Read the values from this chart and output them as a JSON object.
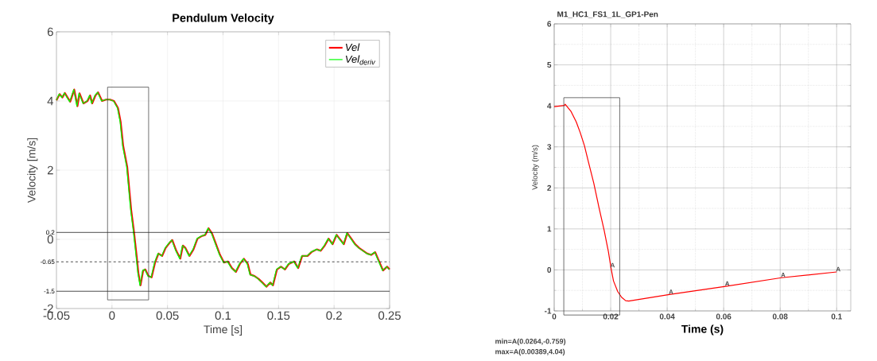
{
  "chart_data": [
    {
      "type": "line",
      "title": "Pendulum Velocity",
      "xlabel": "Time [s]",
      "ylabel": "Velocity [m/s]",
      "xlim": [
        -0.05,
        0.25
      ],
      "ylim": [
        -2,
        6
      ],
      "xticks": [
        -0.05,
        0,
        0.05,
        0.1,
        0.15,
        0.2,
        0.25
      ],
      "yticks": [
        -2,
        0,
        2,
        4,
        6
      ],
      "grid": true,
      "legend": "top right",
      "x": [
        -0.05,
        -0.0471,
        -0.0447,
        -0.0424,
        -0.04,
        -0.0376,
        -0.034,
        -0.0311,
        -0.0292,
        -0.0256,
        -0.022,
        -0.0197,
        -0.0178,
        -0.0149,
        -0.0125,
        -0.0089,
        -0.0053,
        -0.0018,
        0.0018,
        0.0054,
        0.0078,
        0.0101,
        0.0137,
        0.0173,
        0.0197,
        0.0221,
        0.0238,
        0.0257,
        0.0281,
        0.03,
        0.0328,
        0.0357,
        0.0388,
        0.0419,
        0.0452,
        0.0483,
        0.0519,
        0.0543,
        0.0579,
        0.0615,
        0.0639,
        0.0662,
        0.0698,
        0.0734,
        0.077,
        0.0806,
        0.0841,
        0.087,
        0.0901,
        0.0937,
        0.0973,
        0.1009,
        0.1044,
        0.108,
        0.1116,
        0.1152,
        0.1188,
        0.1223,
        0.1247,
        0.1283,
        0.1319,
        0.1355,
        0.1391,
        0.1426,
        0.145,
        0.1486,
        0.1522,
        0.1558,
        0.1593,
        0.1641,
        0.1677,
        0.1713,
        0.1761,
        0.1796,
        0.1844,
        0.188,
        0.1916,
        0.1951,
        0.1987,
        0.2023,
        0.2059,
        0.2088,
        0.2119,
        0.2155,
        0.219,
        0.2226,
        0.2262,
        0.2298,
        0.2334,
        0.237,
        0.2406,
        0.2441,
        0.2477,
        0.25
      ],
      "series": [
        {
          "name": "Vel",
          "color": "#ff0000",
          "values": [
            4.02,
            4.2,
            4.1,
            4.23,
            4.1,
            3.98,
            4.33,
            3.85,
            4.22,
            3.93,
            4.0,
            4.16,
            3.93,
            4.16,
            4.25,
            4.0,
            4.04,
            4.04,
            4.0,
            3.8,
            3.4,
            2.7,
            2.1,
            0.85,
            0.25,
            -0.45,
            -0.98,
            -1.33,
            -0.9,
            -0.87,
            -1.06,
            -1.1,
            -0.67,
            -0.41,
            -0.48,
            -0.25,
            -0.1,
            -0.02,
            -0.33,
            -0.56,
            -0.18,
            -0.25,
            -0.48,
            -0.29,
            0.02,
            0.09,
            0.13,
            0.32,
            0.17,
            -0.14,
            -0.45,
            -0.67,
            -0.64,
            -0.83,
            -0.94,
            -0.71,
            -0.56,
            -0.71,
            -1.02,
            -1.06,
            -1.14,
            -1.25,
            -1.37,
            -1.25,
            -1.33,
            -0.87,
            -0.79,
            -0.87,
            -0.71,
            -0.64,
            -0.83,
            -0.48,
            -0.48,
            -0.37,
            -0.29,
            -0.33,
            -0.18,
            0.02,
            -0.14,
            0.13,
            -0.02,
            -0.14,
            0.18,
            0.02,
            -0.14,
            -0.25,
            -0.33,
            -0.41,
            -0.45,
            -0.37,
            -0.64,
            -0.9,
            -0.79,
            -0.87
          ]
        },
        {
          "name": "Vel$_{deriv}$",
          "color": "#00ff00",
          "x": [
            -0.05,
            -0.0476,
            -0.0452,
            -0.0429,
            -0.0405,
            -0.0381,
            -0.0345,
            -0.0316,
            -0.0297,
            -0.0261,
            -0.0225,
            -0.0202,
            -0.0183,
            -0.0154,
            -0.013,
            -0.0094,
            -0.0058,
            -0.0023,
            0.0013,
            0.0049,
            0.0073,
            0.0096,
            0.0132,
            0.0168,
            0.0192,
            0.0216,
            0.0233,
            0.0252,
            0.0276,
            0.0295,
            0.0323,
            0.0352,
            0.0383,
            0.0414,
            0.0447,
            0.0478,
            0.0514,
            0.0538,
            0.0574,
            0.061,
            0.0634,
            0.0657,
            0.0693,
            0.0729,
            0.0765,
            0.0801,
            0.0836,
            0.0865,
            0.0896,
            0.0932,
            0.0968,
            0.1004,
            0.1039,
            0.1075,
            0.1111,
            0.1147,
            0.1183,
            0.1218,
            0.1242,
            0.1278,
            0.1314,
            0.135,
            0.1386,
            0.1421,
            0.1445,
            0.1481,
            0.1517,
            0.1553,
            0.1588,
            0.1636,
            0.1672,
            0.1708,
            0.1756,
            0.1791,
            0.1839,
            0.1875,
            0.1911,
            0.1946,
            0.1982,
            0.2018,
            0.2054,
            0.2083,
            0.2114,
            0.215,
            0.2185,
            0.2221,
            0.2257,
            0.2293,
            0.2329,
            0.2365,
            0.2401,
            0.2436,
            0.2472,
            0.2495
          ],
          "values": [
            4.02,
            4.2,
            4.1,
            4.23,
            4.1,
            3.98,
            4.33,
            3.85,
            4.22,
            3.93,
            4.0,
            4.16,
            3.93,
            4.16,
            4.25,
            4.0,
            4.04,
            4.04,
            4.0,
            3.8,
            3.4,
            2.7,
            2.1,
            0.85,
            0.25,
            -0.45,
            -0.98,
            -1.33,
            -0.9,
            -0.87,
            -1.06,
            -1.1,
            -0.67,
            -0.41,
            -0.48,
            -0.25,
            -0.1,
            -0.02,
            -0.33,
            -0.56,
            -0.18,
            -0.25,
            -0.48,
            -0.29,
            0.02,
            0.09,
            0.13,
            0.32,
            0.17,
            -0.14,
            -0.45,
            -0.67,
            -0.64,
            -0.83,
            -0.94,
            -0.71,
            -0.56,
            -0.71,
            -1.02,
            -1.06,
            -1.14,
            -1.25,
            -1.37,
            -1.25,
            -1.33,
            -0.87,
            -0.79,
            -0.87,
            -0.71,
            -0.64,
            -0.83,
            -0.48,
            -0.48,
            -0.37,
            -0.29,
            -0.33,
            -0.18,
            0.02,
            -0.14,
            0.13,
            -0.02,
            -0.14,
            0.18,
            0.02,
            -0.14,
            -0.25,
            -0.33,
            -0.41,
            -0.45,
            -0.37,
            -0.64,
            -0.9,
            -0.79,
            -0.87
          ]
        }
      ],
      "ref_lines": [
        {
          "axis": "y",
          "value": 0.2,
          "label": "0.2",
          "color": "#000000",
          "line_style": "solid"
        },
        {
          "axis": "y",
          "value": -0.65,
          "label": "-0.65",
          "color": "#000000",
          "line_style": "dashed"
        },
        {
          "axis": "y",
          "value": -1.5,
          "label": "-1.5",
          "color": "#000000",
          "line_style": "solid"
        }
      ]
    },
    {
      "type": "line",
      "title": "M1_HC1_FS1_1L_GP1-Pen",
      "xlabel": "Time (s)",
      "ylabel": "Velocity (m/s)",
      "xlim": [
        0,
        0.105
      ],
      "ylim": [
        -1,
        6
      ],
      "xticks": [
        0,
        0.02,
        0.04,
        0.06,
        0.08,
        0.1
      ],
      "yticks": [
        -1,
        0,
        1,
        2,
        3,
        4,
        5,
        6
      ],
      "grid": true,
      "x": [
        0,
        0.0036,
        0.00389,
        0.0059,
        0.0078,
        0.0092,
        0.0107,
        0.0121,
        0.014,
        0.0158,
        0.0177,
        0.0192,
        0.0201,
        0.021,
        0.0225,
        0.0239,
        0.0253,
        0.0264,
        0.0408,
        0.0607,
        0.0805,
        0.1
      ],
      "series": [
        {
          "color": "#ff0000",
          "values": [
            3.98,
            4.01,
            4.04,
            3.87,
            3.61,
            3.35,
            3.03,
            2.64,
            2.12,
            1.54,
            0.96,
            0.44,
            0.05,
            -0.27,
            -0.53,
            -0.67,
            -0.75,
            -0.759,
            -0.6,
            -0.4,
            -0.19,
            -0.05
          ]
        }
      ],
      "annotations": [
        {
          "text": "A",
          "x": 0.0201,
          "y": 0.05
        },
        {
          "text": "A",
          "x": 0.0408,
          "y": -0.6
        },
        {
          "text": "A",
          "x": 0.0607,
          "y": -0.4
        },
        {
          "text": "A",
          "x": 0.0805,
          "y": -0.19
        },
        {
          "text": "A",
          "x": 0.1,
          "y": -0.05
        },
        "min=A(0.0264,-0.759)",
        "max=A(0.00389,4.04)"
      ]
    }
  ]
}
